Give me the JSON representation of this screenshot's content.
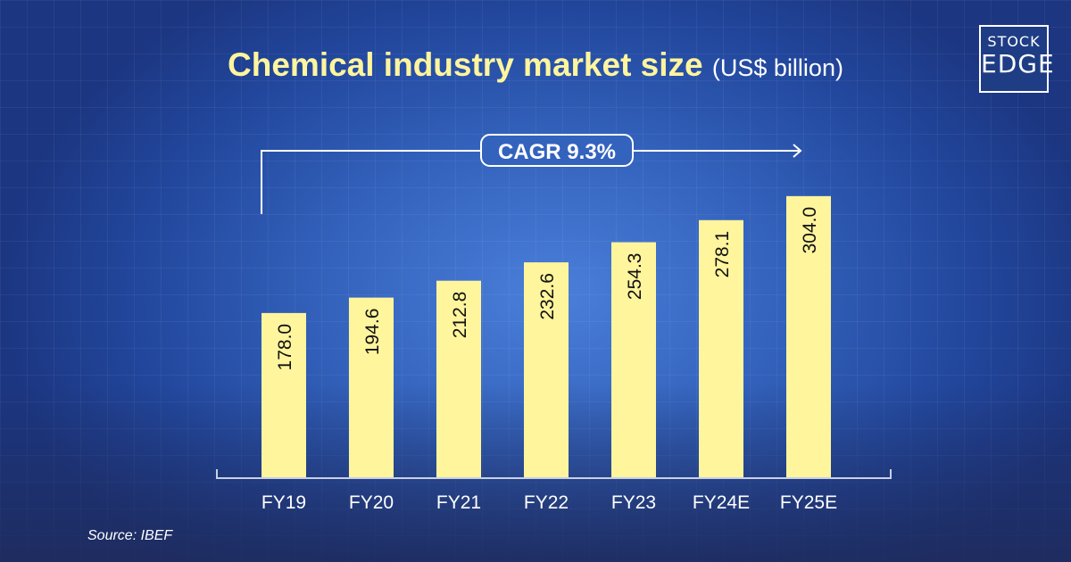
{
  "logo": {
    "line1": "STOCK",
    "line2": "EDGE"
  },
  "chart_data": {
    "type": "bar",
    "title": "Chemical industry market size",
    "unit": "(US$ billion)",
    "categories": [
      "FY19",
      "FY20",
      "FY21",
      "FY22",
      "FY23",
      "FY24E",
      "FY25E"
    ],
    "values": [
      178.0,
      194.6,
      212.8,
      232.6,
      254.3,
      278.1,
      304.0
    ],
    "value_labels": [
      "178.0",
      "194.6",
      "212.8",
      "232.6",
      "254.3",
      "278.1",
      "304.0"
    ],
    "annotation": "CAGR 9.3%",
    "bar_color": "#fff59d",
    "title_color": "#fff59d",
    "grid": false,
    "legend": "none"
  },
  "source": "Source: IBEF"
}
